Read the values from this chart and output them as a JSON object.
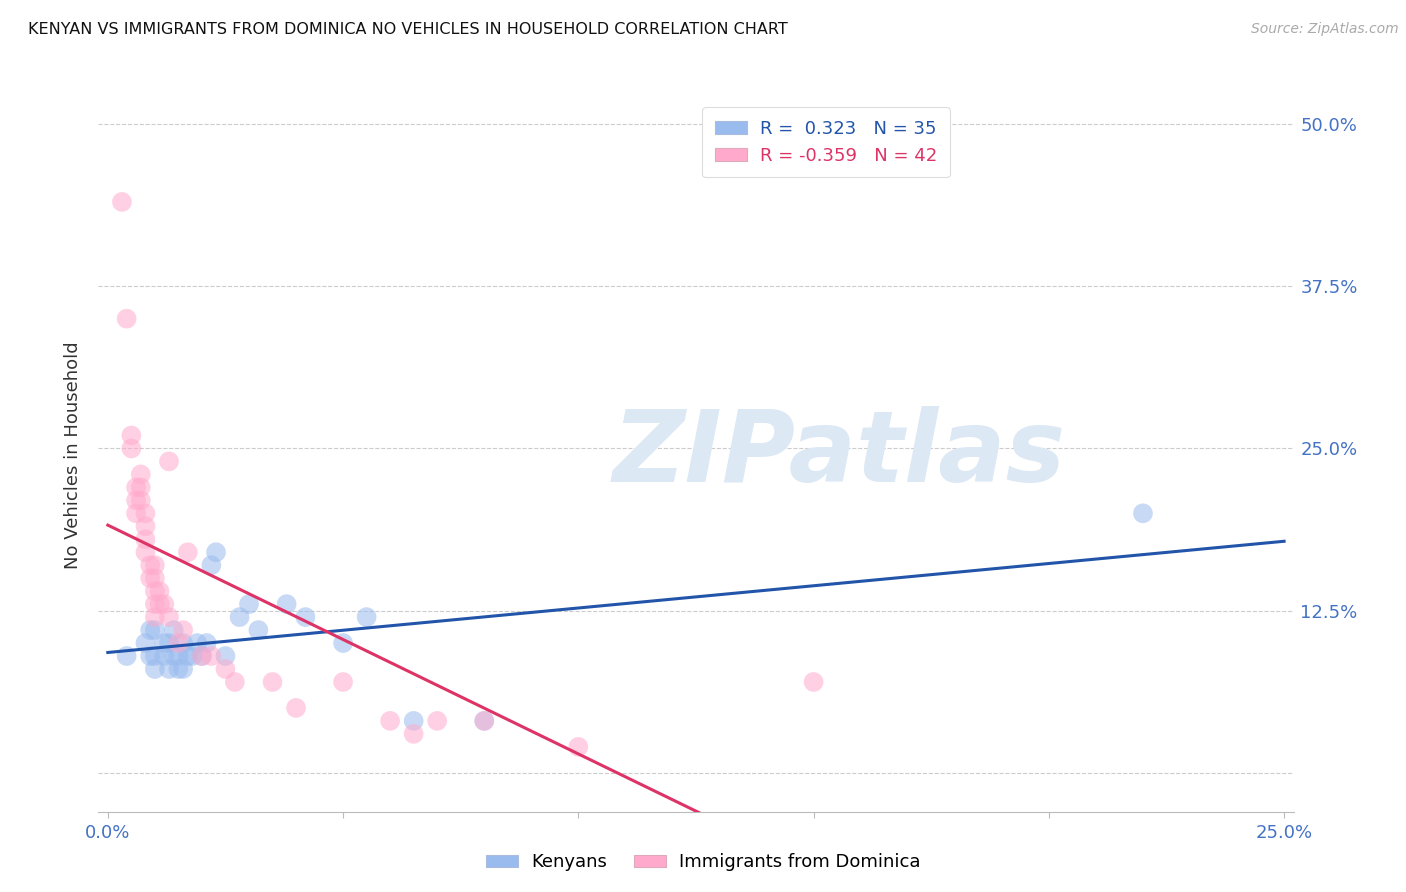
{
  "title": "KENYAN VS IMMIGRANTS FROM DOMINICA NO VEHICLES IN HOUSEHOLD CORRELATION CHART",
  "source": "Source: ZipAtlas.com",
  "ylabel": "No Vehicles in Household",
  "tick_color": "#4472c4",
  "xlim": [
    -0.002,
    0.252
  ],
  "ylim": [
    -0.03,
    0.52
  ],
  "yticks": [
    0.0,
    0.125,
    0.25,
    0.375,
    0.5
  ],
  "ytick_labels": [
    "",
    "12.5%",
    "25.0%",
    "37.5%",
    "50.0%"
  ],
  "xticks": [
    0.0,
    0.05,
    0.1,
    0.15,
    0.2,
    0.25
  ],
  "xtick_labels": [
    "0.0%",
    "",
    "",
    "",
    "",
    "25.0%"
  ],
  "blue_r": 0.323,
  "blue_n": 35,
  "pink_r": -0.359,
  "pink_n": 42,
  "blue_scatter_color": "#99bbee",
  "pink_scatter_color": "#ffaacc",
  "blue_line_color": "#2255aa",
  "pink_line_color": "#dd3366",
  "watermark_text": "ZIPatlas",
  "legend_label_blue": "Kenyans",
  "legend_label_pink": "Immigrants from Dominica",
  "blue_x": [
    0.004,
    0.008,
    0.009,
    0.009,
    0.01,
    0.01,
    0.01,
    0.012,
    0.012,
    0.013,
    0.013,
    0.014,
    0.014,
    0.015,
    0.015,
    0.016,
    0.016,
    0.017,
    0.018,
    0.019,
    0.02,
    0.021,
    0.022,
    0.023,
    0.025,
    0.028,
    0.03,
    0.032,
    0.038,
    0.042,
    0.05,
    0.055,
    0.065,
    0.08,
    0.22
  ],
  "blue_y": [
    0.09,
    0.1,
    0.09,
    0.11,
    0.08,
    0.09,
    0.11,
    0.09,
    0.1,
    0.08,
    0.1,
    0.09,
    0.11,
    0.08,
    0.09,
    0.08,
    0.1,
    0.09,
    0.09,
    0.1,
    0.09,
    0.1,
    0.16,
    0.17,
    0.09,
    0.12,
    0.13,
    0.11,
    0.13,
    0.12,
    0.1,
    0.12,
    0.04,
    0.04,
    0.2
  ],
  "pink_x": [
    0.003,
    0.004,
    0.005,
    0.005,
    0.006,
    0.006,
    0.006,
    0.007,
    0.007,
    0.007,
    0.008,
    0.008,
    0.008,
    0.008,
    0.009,
    0.009,
    0.01,
    0.01,
    0.01,
    0.01,
    0.01,
    0.011,
    0.011,
    0.012,
    0.013,
    0.013,
    0.015,
    0.016,
    0.017,
    0.02,
    0.022,
    0.025,
    0.027,
    0.035,
    0.04,
    0.05,
    0.06,
    0.065,
    0.07,
    0.08,
    0.1,
    0.15
  ],
  "pink_y": [
    0.44,
    0.35,
    0.26,
    0.25,
    0.22,
    0.21,
    0.2,
    0.21,
    0.22,
    0.23,
    0.17,
    0.18,
    0.19,
    0.2,
    0.15,
    0.16,
    0.12,
    0.13,
    0.14,
    0.15,
    0.16,
    0.13,
    0.14,
    0.13,
    0.12,
    0.24,
    0.1,
    0.11,
    0.17,
    0.09,
    0.09,
    0.08,
    0.07,
    0.07,
    0.05,
    0.07,
    0.04,
    0.03,
    0.04,
    0.04,
    0.02,
    0.07
  ]
}
